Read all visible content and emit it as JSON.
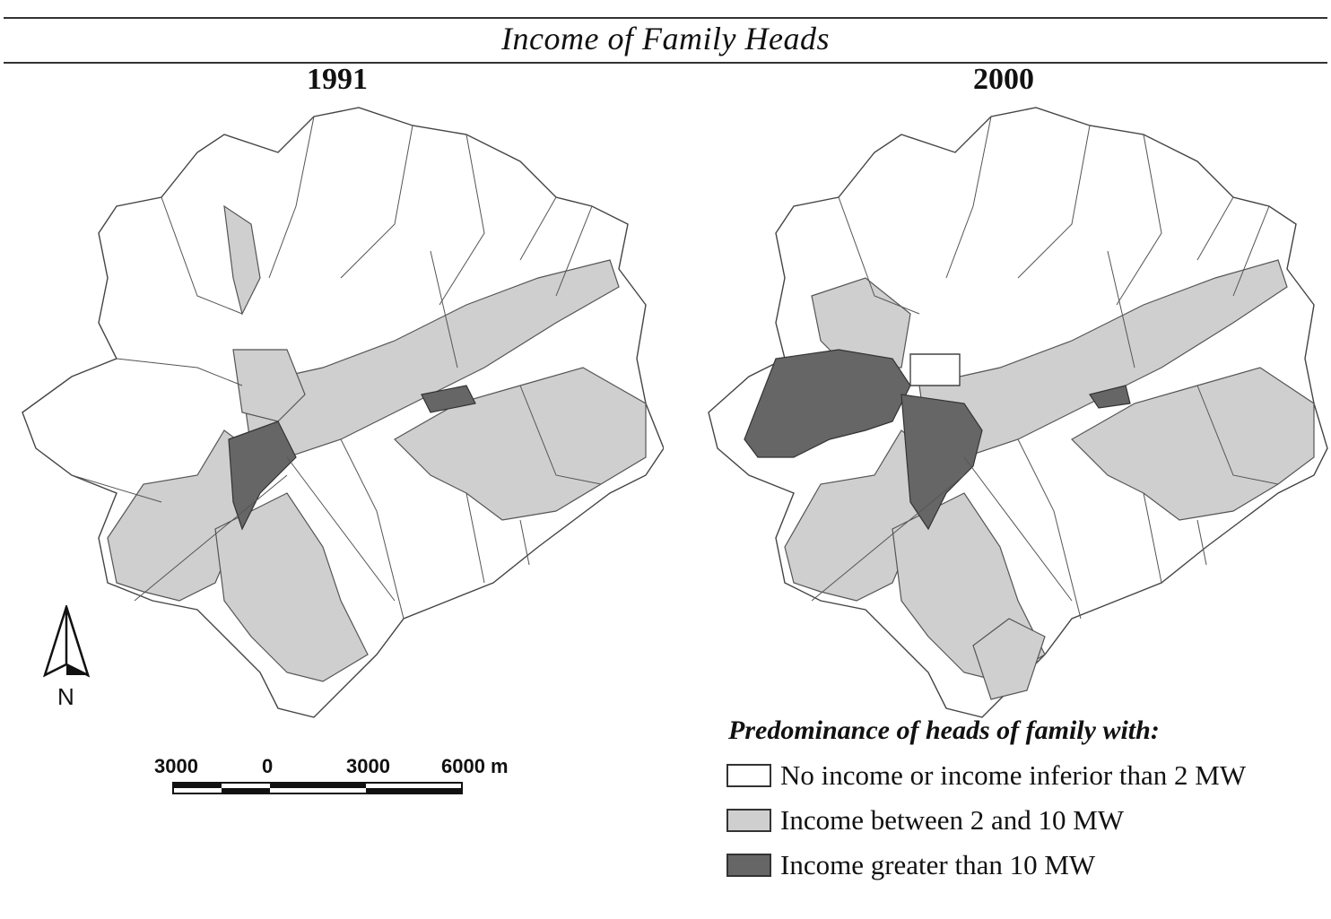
{
  "title": "Income of Family Heads",
  "panels": [
    {
      "year": "1991"
    },
    {
      "year": "2000"
    }
  ],
  "north_arrow": {
    "label": "N"
  },
  "scale_bar": {
    "ticks": [
      "3000",
      "0",
      "3000",
      "6000 m"
    ]
  },
  "legend": {
    "title": "Predominance of heads of family with:",
    "items": [
      {
        "label": "No income or income inferior than 2 MW",
        "color": "#ffffff"
      },
      {
        "label": "Income between 2 and 10 MW",
        "color": "#cfcfcf"
      },
      {
        "label": "Income greater than 10 MW",
        "color": "#666666"
      }
    ]
  }
}
